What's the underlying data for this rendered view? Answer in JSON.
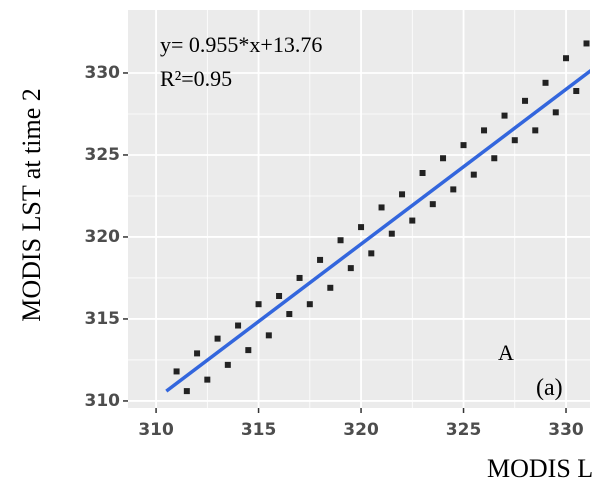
{
  "chart_data": {
    "type": "scatter",
    "annotations": [
      "y= 0.955*x+13.76",
      "R²=0.95",
      "A",
      "(a)"
    ],
    "x_label": "MODIS L",
    "y_label": "MODIS LST at time 2",
    "x": [
      311,
      311.5,
      312,
      312.5,
      313,
      313.5,
      314,
      314.5,
      315,
      315.5,
      316,
      316.5,
      317,
      317.5,
      318,
      318.5,
      319,
      319.5,
      320,
      320.5,
      321,
      321.5,
      322,
      322.5,
      323,
      323.5,
      324,
      324.5,
      325,
      325.5,
      326,
      326.5,
      327,
      327.5,
      328,
      328.5,
      329,
      329.5,
      330,
      330.5,
      331,
      331.5
    ],
    "series": [
      {
        "color": "#222222",
        "values": [
          311.8,
          310.6,
          312.9,
          311.3,
          313.8,
          312.2,
          314.6,
          313.1,
          315.9,
          314.0,
          316.4,
          315.3,
          317.5,
          315.9,
          318.6,
          316.9,
          319.8,
          318.1,
          320.6,
          319.0,
          321.8,
          320.2,
          322.6,
          321.0,
          323.9,
          322.0,
          324.8,
          322.9,
          325.6,
          323.8,
          326.5,
          324.8,
          327.4,
          325.9,
          328.3,
          326.5,
          329.4,
          327.6,
          330.9,
          328.9,
          331.8,
          330.5
        ]
      }
    ],
    "fit_line": {
      "color": "#3366dd",
      "x": [
        310.5,
        331.8
      ],
      "y": [
        310.6,
        330.7
      ]
    },
    "xlim": [
      308.63,
      331.17
    ],
    "ylim": [
      309.57,
      333.84
    ],
    "xticks": [
      310,
      315,
      320,
      325,
      330
    ],
    "yticks": [
      310,
      315,
      320,
      325,
      330
    ],
    "x_minor_grid": [
      312.5,
      317.5,
      322.5,
      327.5
    ],
    "y_minor_grid": [
      312.5,
      317.5,
      322.5,
      327.5
    ],
    "grid": true
  }
}
